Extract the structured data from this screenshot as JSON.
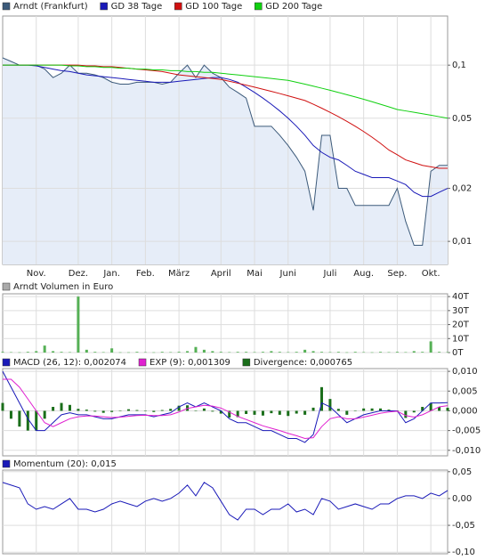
{
  "chart_data": [
    {
      "type": "line",
      "log": true,
      "grid": true,
      "categories": [
        null,
        null,
        null,
        null,
        "Nov.",
        null,
        null,
        null,
        null,
        "Dez.",
        null,
        null,
        null,
        "Jan.",
        null,
        null,
        null,
        "Feb.",
        null,
        null,
        null,
        "März",
        null,
        null,
        null,
        null,
        "April",
        null,
        null,
        null,
        "Mai",
        null,
        null,
        null,
        "Juni",
        null,
        null,
        null,
        null,
        "Juli",
        null,
        null,
        null,
        "Aug.",
        null,
        null,
        null,
        "Sep.",
        null,
        null,
        null,
        "Okt.",
        null,
        null
      ],
      "ylim": [
        0.0074,
        0.19
      ],
      "yticks": [
        {
          "value": 0.01,
          "label": "0,01"
        },
        {
          "value": 0.02,
          "label": "0,02"
        },
        {
          "value": 0.05,
          "label": "0,05"
        },
        {
          "value": 0.1,
          "label": "0,1"
        }
      ],
      "series": [
        {
          "name": "Arndt (Frankfurt)",
          "color": "#3c5a7a",
          "area_color": "#e6edf8",
          "values": [
            0.11,
            0.105,
            0.1,
            0.1,
            0.1,
            0.095,
            0.085,
            0.09,
            0.1,
            0.09,
            0.09,
            0.088,
            0.085,
            0.08,
            0.078,
            0.078,
            0.08,
            0.08,
            0.08,
            0.078,
            0.08,
            0.09,
            0.1,
            0.085,
            0.1,
            0.09,
            0.085,
            0.075,
            0.07,
            0.065,
            0.045,
            0.045,
            0.045,
            0.04,
            0.035,
            0.03,
            0.025,
            0.015,
            0.04,
            0.04,
            0.02,
            0.02,
            0.016,
            0.016,
            0.016,
            0.016,
            0.016,
            0.02,
            0.013,
            0.0095,
            0.0095,
            0.025,
            0.027,
            0.027
          ]
        },
        {
          "name": "GD 38 Tage",
          "color": "#1a1ab8",
          "values": [
            0.1,
            0.1,
            0.1,
            0.1,
            0.099,
            0.097,
            0.095,
            0.093,
            0.092,
            0.09,
            0.088,
            0.087,
            0.086,
            0.085,
            0.084,
            0.083,
            0.082,
            0.081,
            0.08,
            0.08,
            0.08,
            0.081,
            0.082,
            0.083,
            0.084,
            0.085,
            0.085,
            0.083,
            0.08,
            0.075,
            0.07,
            0.065,
            0.06,
            0.055,
            0.05,
            0.045,
            0.04,
            0.035,
            0.032,
            0.03,
            0.029,
            0.027,
            0.025,
            0.024,
            0.023,
            0.023,
            0.023,
            0.022,
            0.021,
            0.019,
            0.018,
            0.018,
            0.019,
            0.02
          ]
        },
        {
          "name": "GD 100 Tage",
          "color": "#d01010",
          "values": [
            0.1,
            0.1,
            0.1,
            0.1,
            0.1,
            0.1,
            0.1,
            0.1,
            0.1,
            0.1,
            0.099,
            0.099,
            0.098,
            0.098,
            0.097,
            0.096,
            0.095,
            0.094,
            0.093,
            0.092,
            0.09,
            0.088,
            0.087,
            0.086,
            0.085,
            0.084,
            0.083,
            0.081,
            0.079,
            0.077,
            0.075,
            0.073,
            0.071,
            0.069,
            0.067,
            0.065,
            0.063,
            0.06,
            0.057,
            0.054,
            0.051,
            0.048,
            0.045,
            0.042,
            0.039,
            0.036,
            0.033,
            0.031,
            0.029,
            0.028,
            0.027,
            0.0265,
            0.026,
            0.026
          ]
        },
        {
          "name": "GD 200 Tage",
          "color": "#10d010",
          "values": [
            0.1,
            0.1,
            0.1,
            0.1,
            0.1,
            0.1,
            0.1,
            0.1,
            0.099,
            0.099,
            0.098,
            0.098,
            0.097,
            0.097,
            0.096,
            0.096,
            0.095,
            0.095,
            0.094,
            0.094,
            0.093,
            0.093,
            0.092,
            0.092,
            0.091,
            0.091,
            0.09,
            0.089,
            0.088,
            0.087,
            0.086,
            0.085,
            0.084,
            0.083,
            0.082,
            0.08,
            0.078,
            0.076,
            0.074,
            0.072,
            0.07,
            0.068,
            0.066,
            0.064,
            0.062,
            0.06,
            0.058,
            0.056,
            0.055,
            0.054,
            0.053,
            0.052,
            0.051,
            0.05
          ]
        }
      ]
    },
    {
      "type": "bar",
      "grid": true,
      "ylim": [
        0,
        42
      ],
      "yticks": [
        {
          "value": 0,
          "label": "0T"
        },
        {
          "value": 10,
          "label": "10T"
        },
        {
          "value": 20,
          "label": "20T"
        },
        {
          "value": 30,
          "label": "30T"
        },
        {
          "value": 40,
          "label": "40T"
        }
      ],
      "series": [
        {
          "name": "Arndt Volumen in Euro",
          "color": "#aaaaaa",
          "bar_color": "#55b055",
          "values": [
            0.5,
            0.3,
            0.2,
            0.5,
            1,
            5,
            1,
            0.5,
            0.3,
            40,
            2,
            0.5,
            0.3,
            3,
            0.2,
            0.2,
            0.5,
            0.3,
            0.2,
            0.5,
            0.3,
            0.5,
            1,
            4,
            2,
            1,
            0.5,
            0.3,
            0.5,
            0.5,
            0.3,
            0.5,
            1,
            0.5,
            0.3,
            0.5,
            2,
            1,
            0.5,
            0.3,
            0.5,
            0.2,
            0.5,
            0.3,
            0.2,
            0.5,
            0.3,
            0.5,
            0.3,
            1,
            0.5,
            8,
            0.5,
            0.3
          ]
        }
      ]
    },
    {
      "type": "line",
      "grid": true,
      "ylim": [
        -0.0114,
        0.0107
      ],
      "yticks": [
        {
          "value": -0.01,
          "label": "-0,010"
        },
        {
          "value": -0.005,
          "label": "-0,005"
        },
        {
          "value": 0,
          "label": "0,000"
        },
        {
          "value": 0.005,
          "label": "0,005"
        },
        {
          "value": 0.01,
          "label": "0,010"
        }
      ],
      "series": [
        {
          "name": "Divergence: 0,000765",
          "color": "#1a6e1a",
          "type": "bar",
          "values": [
            0.002,
            -0.002,
            -0.004,
            -0.005,
            -0.005,
            -0.002,
            0.001,
            0.002,
            0.0015,
            0.0005,
            0.0003,
            -0.0002,
            -0.0005,
            -0.0003,
            0.0001,
            0.0004,
            0.0002,
            0.0001,
            -0.0003,
            0.0002,
            0.0005,
            0.0013,
            0.0014,
            0,
            0.0006,
            -0.0002,
            -0.0007,
            -0.0017,
            -0.0016,
            -0.0008,
            -0.001,
            -0.0012,
            -0.0006,
            -0.001,
            -0.0013,
            -0.0007,
            -0.001,
            0.0008,
            0.006,
            0.003,
            0.0005,
            -0.001,
            0,
            0.0006,
            0.0006,
            0.0006,
            0.0003,
            0.0001,
            -0.0018,
            -0.0004,
            0.001,
            0.002,
            0.001,
            0.000765
          ]
        },
        {
          "name": "MACD (26, 12): 0,002074",
          "color": "#1a1ab8",
          "values": [
            0.01,
            0.006,
            0.002,
            -0.002,
            -0.005,
            -0.005,
            -0.003,
            -0.001,
            -0.0005,
            -0.001,
            -0.001,
            -0.0015,
            -0.002,
            -0.002,
            -0.0015,
            -0.001,
            -0.001,
            -0.001,
            -0.0015,
            -0.001,
            -0.0005,
            0.001,
            0.002,
            0.001,
            0.002,
            0.001,
            0,
            -0.002,
            -0.003,
            -0.003,
            -0.004,
            -0.005,
            -0.005,
            -0.006,
            -0.007,
            -0.007,
            -0.008,
            -0.006,
            0.002,
            0.001,
            -0.001,
            -0.003,
            -0.002,
            -0.001,
            -0.0005,
            0,
            0,
            0,
            -0.003,
            -0.002,
            0,
            0.002,
            0.002,
            0.002074
          ]
        },
        {
          "name": "EXP (9): 0,001309",
          "color": "#e020d0",
          "values": [
            0.008,
            0.008,
            0.006,
            0.003,
            0,
            -0.003,
            -0.004,
            -0.003,
            -0.002,
            -0.0015,
            -0.0013,
            -0.0013,
            -0.0015,
            -0.0017,
            -0.0016,
            -0.0014,
            -0.0012,
            -0.0011,
            -0.0012,
            -0.0012,
            -0.001,
            -0.0003,
            0.0006,
            0.001,
            0.0014,
            0.0012,
            0.0007,
            -0.0003,
            -0.0014,
            -0.0022,
            -0.003,
            -0.0038,
            -0.0044,
            -0.005,
            -0.0057,
            -0.0063,
            -0.007,
            -0.0068,
            -0.004,
            -0.002,
            -0.0015,
            -0.002,
            -0.002,
            -0.0016,
            -0.0011,
            -0.0006,
            -0.0003,
            -0.0001,
            -0.0012,
            -0.0016,
            -0.001,
            0,
            0.001,
            0.001309
          ]
        }
      ]
    },
    {
      "type": "line",
      "grid": true,
      "ylim": [
        -0.103,
        0.053
      ],
      "yticks": [
        {
          "value": -0.1,
          "label": "-0,10"
        },
        {
          "value": -0.05,
          "label": "-0,05"
        },
        {
          "value": 0,
          "label": "0,00"
        },
        {
          "value": 0.05,
          "label": "0,05"
        }
      ],
      "series": [
        {
          "name": "Momentum (20): 0,015",
          "color": "#1a1ab8",
          "values": [
            0.03,
            0.025,
            0.02,
            -0.01,
            -0.02,
            -0.015,
            -0.02,
            -0.01,
            0.0,
            -0.02,
            -0.02,
            -0.025,
            -0.02,
            -0.01,
            -0.005,
            -0.01,
            -0.015,
            -0.005,
            0.0,
            -0.005,
            0.0,
            0.01,
            0.025,
            0.005,
            0.03,
            0.02,
            -0.005,
            -0.03,
            -0.04,
            -0.02,
            -0.02,
            -0.03,
            -0.02,
            -0.02,
            -0.01,
            -0.025,
            -0.02,
            -0.03,
            0.0,
            -0.005,
            -0.02,
            -0.015,
            -0.01,
            -0.015,
            -0.02,
            -0.01,
            -0.01,
            0.0,
            0.005,
            0.005,
            0.0,
            0.01,
            0.005,
            0.015
          ]
        }
      ]
    }
  ]
}
